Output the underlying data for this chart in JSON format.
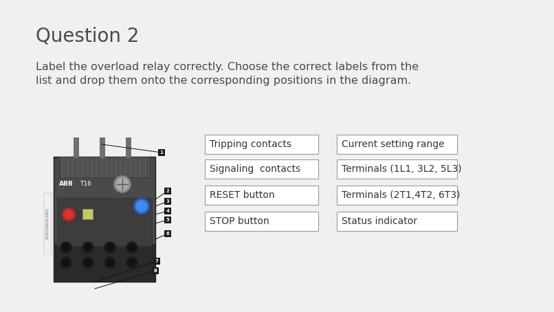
{
  "title": "Question 2",
  "subtitle_line1": "Label the overload relay correctly. Choose the correct labels from the",
  "subtitle_line2": "list and drop them onto the corresponding positions in the diagram.",
  "title_color": "#4a4a4a",
  "subtitle_color": "#4a4a4a",
  "background_color": "#f0f0f0",
  "title_fontsize": 20,
  "subtitle_fontsize": 11.5,
  "labels_left": [
    "Tripping contacts",
    "Signaling  contacts",
    "RESET button",
    "STOP button"
  ],
  "labels_right": [
    "Current setting range",
    "Terminals (1L1, 3L2, 5L3)",
    "Terminals (2T1,4T2, 6T3)",
    "Status indicator"
  ],
  "box_color": "#ffffff",
  "box_edge_color": "#999999",
  "label_fontsize": 10,
  "label_font_color": "#333333",
  "relay_body_color": "#4a4a4a",
  "relay_dark_color": "#2a2a2a",
  "relay_mid_color": "#3a3a3a"
}
